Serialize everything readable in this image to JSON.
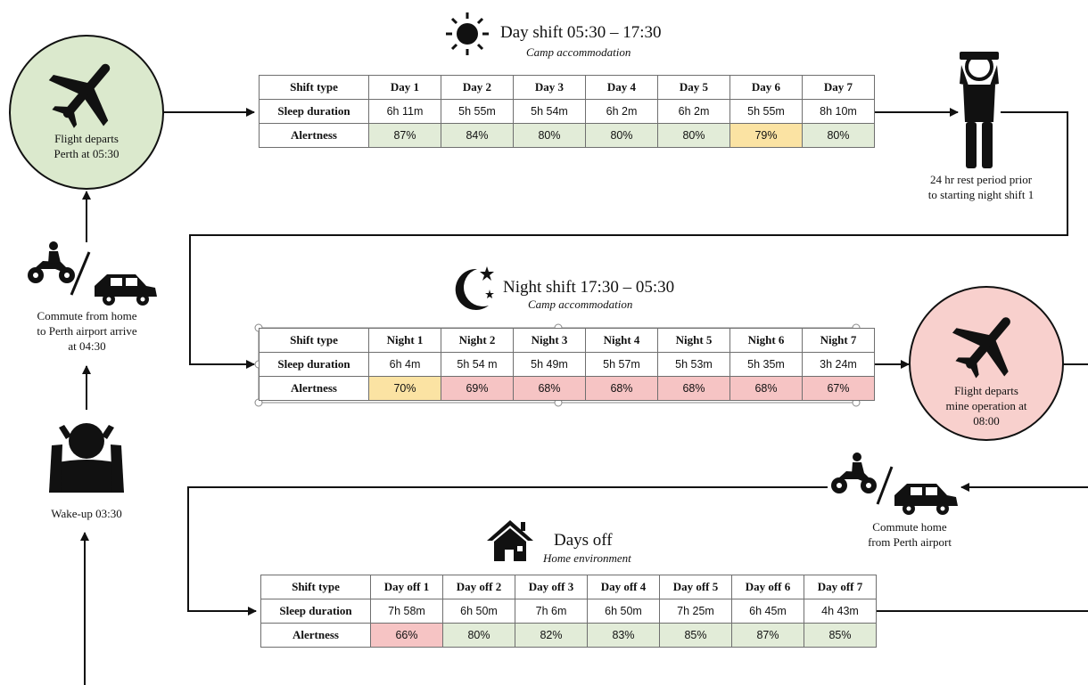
{
  "start_flight": {
    "label_line1": "Flight departs",
    "label_line2": "Perth at 05:30",
    "icon": "airplane-icon"
  },
  "commute_to_airport": {
    "line1": "Commute from home",
    "line2": "to Perth airport arrive",
    "line3": "at 04:30"
  },
  "wake_up": {
    "label": "Wake-up 03:30"
  },
  "rest_period": {
    "line1": "24 hr rest period prior",
    "line2": "to starting night shift 1"
  },
  "mine_flight": {
    "line1": "Flight departs",
    "line2": "mine operation at",
    "line3": "08:00"
  },
  "commute_home": {
    "line1": "Commute home",
    "line2": "from Perth airport"
  },
  "day_shift": {
    "title": "Day shift 05:30 – 17:30",
    "subtitle": "Camp accommodation",
    "row_labels": [
      "Shift type",
      "Sleep duration",
      "Alertness"
    ],
    "columns": [
      "Day 1",
      "Day 2",
      "Day 3",
      "Day 4",
      "Day 5",
      "Day 6",
      "Day 7"
    ],
    "sleep": [
      "6h 11m",
      "5h 55m",
      "5h 54m",
      "6h 2m",
      "6h 2m",
      "5h 55m",
      "8h 10m"
    ],
    "alertness": [
      "87%",
      "84%",
      "80%",
      "80%",
      "80%",
      "79%",
      "80%"
    ],
    "alert_colors": [
      "green",
      "green",
      "green",
      "green",
      "green",
      "yellow",
      "green"
    ]
  },
  "night_shift": {
    "title": "Night shift 17:30 – 05:30",
    "subtitle": "Camp accommodation",
    "row_labels": [
      "Shift type",
      "Sleep duration",
      "Alertness"
    ],
    "columns": [
      "Night 1",
      "Night  2",
      "Night 3",
      "Night 4",
      "Night 5",
      "Night 6",
      "Night 7"
    ],
    "sleep": [
      "6h 4m",
      "5h 54 m",
      "5h 49m",
      "5h 57m",
      "5h 53m",
      "5h 35m",
      "3h 24m"
    ],
    "alertness": [
      "70%",
      "69%",
      "68%",
      "68%",
      "68%",
      "68%",
      "67%"
    ],
    "alert_colors": [
      "yellow",
      "red",
      "red",
      "red",
      "red",
      "red",
      "red"
    ]
  },
  "days_off": {
    "title": "Days off",
    "subtitle": "Home environment",
    "row_labels": [
      "Shift type",
      "Sleep duration",
      "Alertness"
    ],
    "columns": [
      "Day off 1",
      "Day off 2",
      "Day off 3",
      "Day off 4",
      "Day off 5",
      "Day off 6",
      "Day off 7"
    ],
    "sleep": [
      "7h 58m",
      "6h 50m",
      "7h 6m",
      "6h 50m",
      "7h 25m",
      "6h 45m",
      "4h 43m"
    ],
    "alertness": [
      "66%",
      "80%",
      "82%",
      "83%",
      "85%",
      "87%",
      "85%"
    ],
    "alert_colors": [
      "red",
      "green",
      "green",
      "green",
      "green",
      "green",
      "green"
    ]
  },
  "colors": {
    "green": "#e2ecd8",
    "yellow": "#fbe3a3",
    "red": "#f6c4c4",
    "flight_start_fill": "#dbe9cd",
    "flight_mine_fill": "#f8d0cd"
  }
}
